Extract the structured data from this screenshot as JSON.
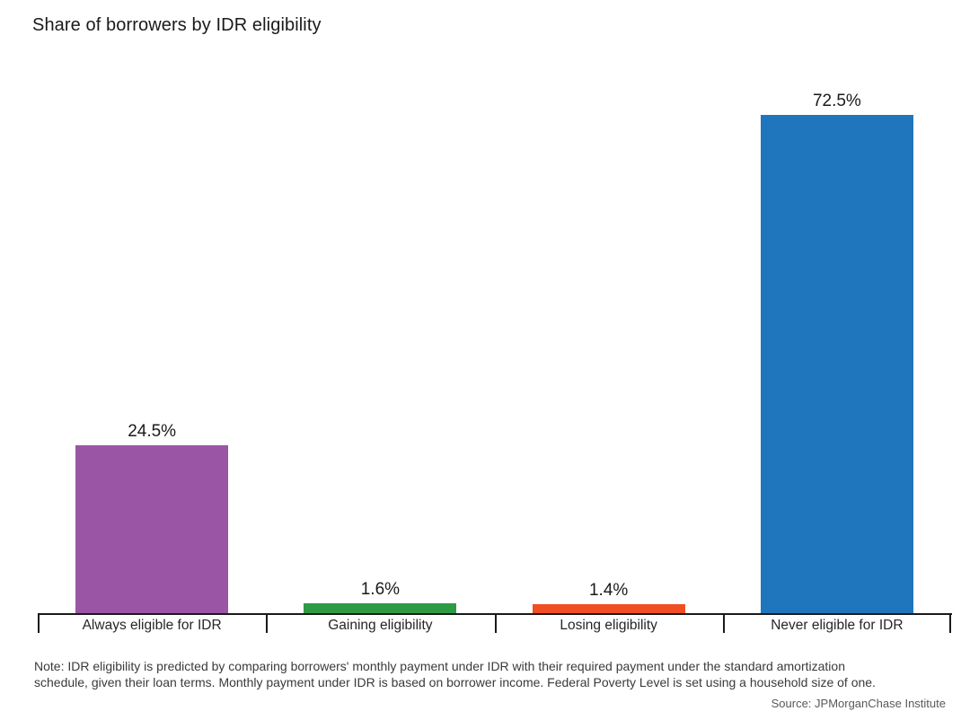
{
  "title": "Share of borrowers by IDR eligibility",
  "chart_data": {
    "type": "bar",
    "title": "Share of borrowers by IDR eligibility",
    "categories": [
      "Always eligible for IDR",
      "Gaining eligibility",
      "Losing eligibility",
      "Never eligible for IDR"
    ],
    "values": [
      24.5,
      1.6,
      1.4,
      72.5
    ],
    "value_labels": [
      "24.5%",
      "1.6%",
      "1.4%",
      "72.5%"
    ],
    "bar_colors": [
      "#9A55A4",
      "#2E9B44",
      "#F04E23",
      "#2076BC"
    ],
    "xlabel": "",
    "ylabel": "",
    "ylim": [
      0,
      76
    ],
    "grid": false,
    "legend": "none",
    "axis_color": "#1a1a1a"
  },
  "note": {
    "line1": "Note: IDR eligibility is predicted by comparing borrowers' monthly payment under IDR with their required payment under the standard amortization",
    "line2": "schedule, given their loan terms. Monthly payment under IDR is based on borrower income.  Federal Poverty Level is set using a household size of one."
  },
  "source": "Source: JPMorganChase Institute"
}
